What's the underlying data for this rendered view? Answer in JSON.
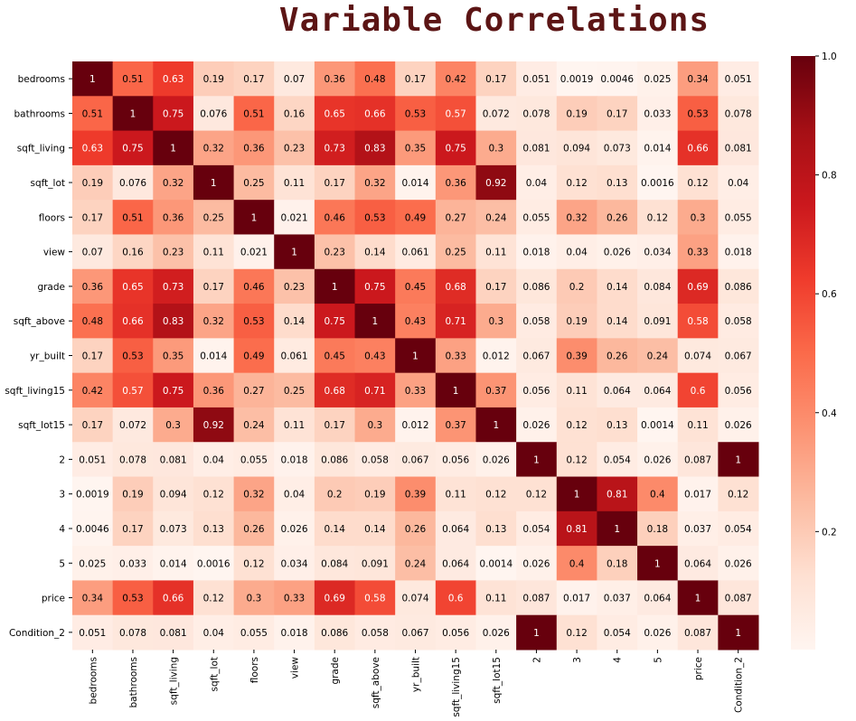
{
  "chart_data": {
    "type": "heatmap",
    "title": "Variable Correlations",
    "x_labels": [
      "bedrooms",
      "bathrooms",
      "sqft_living",
      "sqft_lot",
      "floors",
      "view",
      "grade",
      "sqft_above",
      "yr_built",
      "sqft_living15",
      "sqft_lot15",
      "2",
      "3",
      "4",
      "5",
      "price",
      "Condition_2"
    ],
    "y_labels": [
      "bedrooms",
      "bathrooms",
      "sqft_living",
      "sqft_lot",
      "floors",
      "view",
      "grade",
      "sqft_above",
      "yr_built",
      "sqft_living15",
      "sqft_lot15",
      "2",
      "3",
      "4",
      "5",
      "price",
      "Condition_2"
    ],
    "values": [
      [
        1,
        0.51,
        0.63,
        0.19,
        0.17,
        0.07,
        0.36,
        0.48,
        0.17,
        0.42,
        0.17,
        0.051,
        0.0019,
        0.0046,
        0.025,
        0.34,
        0.051
      ],
      [
        0.51,
        1,
        0.75,
        0.076,
        0.51,
        0.16,
        0.65,
        0.66,
        0.53,
        0.57,
        0.072,
        0.078,
        0.19,
        0.17,
        0.033,
        0.53,
        0.078
      ],
      [
        0.63,
        0.75,
        1,
        0.32,
        0.36,
        0.23,
        0.73,
        0.83,
        0.35,
        0.75,
        0.3,
        0.081,
        0.094,
        0.073,
        0.014,
        0.66,
        0.081
      ],
      [
        0.19,
        0.076,
        0.32,
        1,
        0.25,
        0.11,
        0.17,
        0.32,
        0.014,
        0.36,
        0.92,
        0.04,
        0.12,
        0.13,
        0.0016,
        0.12,
        0.04
      ],
      [
        0.17,
        0.51,
        0.36,
        0.25,
        1,
        0.021,
        0.46,
        0.53,
        0.49,
        0.27,
        0.24,
        0.055,
        0.32,
        0.26,
        0.12,
        0.3,
        0.055
      ],
      [
        0.07,
        0.16,
        0.23,
        0.11,
        0.021,
        1,
        0.23,
        0.14,
        0.061,
        0.25,
        0.11,
        0.018,
        0.04,
        0.026,
        0.034,
        0.33,
        0.018
      ],
      [
        0.36,
        0.65,
        0.73,
        0.17,
        0.46,
        0.23,
        1,
        0.75,
        0.45,
        0.68,
        0.17,
        0.086,
        0.2,
        0.14,
        0.084,
        0.69,
        0.086
      ],
      [
        0.48,
        0.66,
        0.83,
        0.32,
        0.53,
        0.14,
        0.75,
        1,
        0.43,
        0.71,
        0.3,
        0.058,
        0.19,
        0.14,
        0.091,
        0.58,
        0.058
      ],
      [
        0.17,
        0.53,
        0.35,
        0.014,
        0.49,
        0.061,
        0.45,
        0.43,
        1,
        0.33,
        0.012,
        0.067,
        0.39,
        0.26,
        0.24,
        0.074,
        0.067
      ],
      [
        0.42,
        0.57,
        0.75,
        0.36,
        0.27,
        0.25,
        0.68,
        0.71,
        0.33,
        1,
        0.37,
        0.056,
        0.11,
        0.064,
        0.064,
        0.6,
        0.056
      ],
      [
        0.17,
        0.072,
        0.3,
        0.92,
        0.24,
        0.11,
        0.17,
        0.3,
        0.012,
        0.37,
        1,
        0.026,
        0.12,
        0.13,
        0.0014,
        0.11,
        0.026
      ],
      [
        0.051,
        0.078,
        0.081,
        0.04,
        0.055,
        0.018,
        0.086,
        0.058,
        0.067,
        0.056,
        0.026,
        1,
        0.12,
        0.054,
        0.026,
        0.087,
        1
      ],
      [
        0.0019,
        0.19,
        0.094,
        0.12,
        0.32,
        0.04,
        0.2,
        0.19,
        0.39,
        0.11,
        0.12,
        0.12,
        1,
        0.81,
        0.4,
        0.017,
        0.12
      ],
      [
        0.0046,
        0.17,
        0.073,
        0.13,
        0.26,
        0.026,
        0.14,
        0.14,
        0.26,
        0.064,
        0.13,
        0.054,
        0.81,
        1,
        0.18,
        0.037,
        0.054
      ],
      [
        0.025,
        0.033,
        0.014,
        0.0016,
        0.12,
        0.034,
        0.084,
        0.091,
        0.24,
        0.064,
        0.0014,
        0.026,
        0.4,
        0.18,
        1,
        0.064,
        0.026
      ],
      [
        0.34,
        0.53,
        0.66,
        0.12,
        0.3,
        0.33,
        0.69,
        0.58,
        0.074,
        0.6,
        0.11,
        0.087,
        0.017,
        0.037,
        0.064,
        1,
        0.087
      ],
      [
        0.051,
        0.078,
        0.081,
        0.04,
        0.055,
        0.018,
        0.086,
        0.058,
        0.067,
        0.056,
        0.026,
        1,
        0.12,
        0.054,
        0.026,
        0.087,
        1
      ]
    ],
    "value_range": [
      0,
      1
    ],
    "colorbar": {
      "ticks": [
        1.0,
        0.8,
        0.6,
        0.4,
        0.2
      ],
      "tick_labels": [
        "1.0",
        "0.8",
        "0.6",
        "0.4",
        "0.2"
      ]
    },
    "colormap": "Reds",
    "colormap_stops": [
      "#fff5f0",
      "#fee0d2",
      "#fcbba1",
      "#fc9272",
      "#fb6a4a",
      "#ef3b2c",
      "#cb181d",
      "#a50f15",
      "#67000d"
    ],
    "grid": false,
    "annotations": true
  }
}
